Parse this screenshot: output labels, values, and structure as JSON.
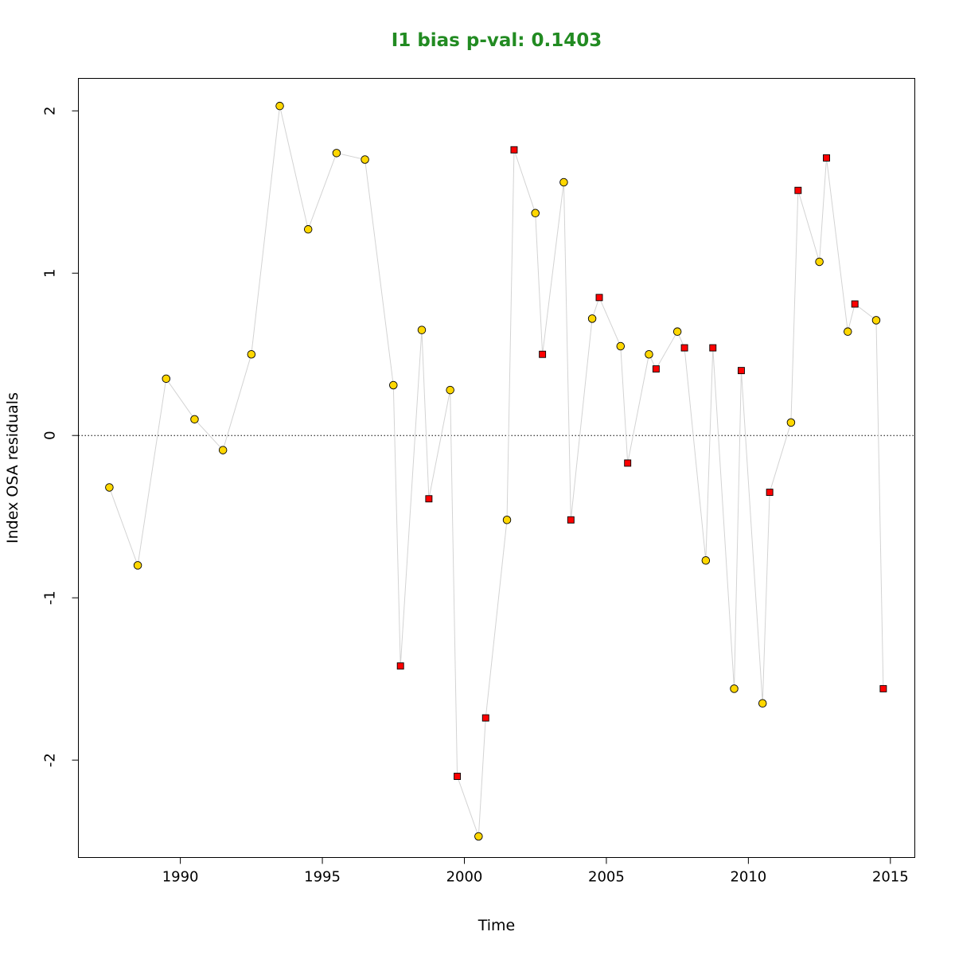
{
  "chart_data": {
    "type": "scatter",
    "title": "I1 bias p-val: 0.1403",
    "title_color": "#228B22",
    "xlabel": "Time",
    "ylabel": "Index OSA residuals",
    "xlim": [
      1986.41,
      2015.86
    ],
    "ylim": [
      -2.6,
      2.2
    ],
    "x_ticks": [
      1990,
      1995,
      2000,
      2005,
      2010,
      2015
    ],
    "y_ticks": [
      -2,
      -1,
      0,
      1,
      2
    ],
    "reference_line": {
      "y": 0,
      "style": "dotted"
    },
    "connector_color": "#d3d3d3",
    "series": [
      {
        "marker": "circle",
        "color": "#FFD700",
        "x": [
          1987.5,
          1988.5,
          1989.5,
          1990.5,
          1991.5,
          1992.5,
          1993.5,
          1994.5,
          1995.5,
          1996.5,
          1997.5,
          1998.5,
          1999.5,
          2000.5,
          2001.5,
          2002.5,
          2003.5,
          2004.5,
          2005.5,
          2006.5,
          2007.5,
          2008.5,
          2009.5,
          2010.5,
          2011.5,
          2012.5,
          2013.5,
          2014.5
        ],
        "values": [
          -0.32,
          -0.8,
          0.35,
          0.1,
          -0.09,
          0.5,
          2.03,
          1.27,
          1.74,
          1.7,
          0.31,
          0.65,
          0.28,
          -2.47,
          -0.52,
          1.37,
          1.56,
          0.72,
          0.55,
          0.5,
          0.64,
          -0.77,
          -1.56,
          -1.65,
          0.08,
          1.07,
          0.64,
          0.71
        ]
      },
      {
        "marker": "square",
        "color": "#FF0000",
        "x": [
          1997.75,
          1998.75,
          1999.75,
          2000.75,
          2001.75,
          2002.75,
          2003.75,
          2004.75,
          2005.75,
          2006.75,
          2007.75,
          2008.75,
          2009.75,
          2010.75,
          2011.75,
          2012.75,
          2013.75,
          2014.75
        ],
        "values": [
          -1.42,
          -0.39,
          -2.1,
          -1.74,
          1.76,
          0.5,
          -0.52,
          0.85,
          -0.17,
          0.41,
          0.54,
          0.54,
          0.4,
          -0.35,
          1.51,
          1.71,
          0.81,
          -1.56
        ]
      }
    ]
  }
}
